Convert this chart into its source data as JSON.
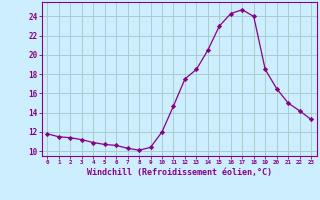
{
  "x": [
    0,
    1,
    2,
    3,
    4,
    5,
    6,
    7,
    8,
    9,
    10,
    11,
    12,
    13,
    14,
    15,
    16,
    17,
    18,
    19,
    20,
    21,
    22,
    23
  ],
  "y": [
    11.8,
    11.5,
    11.4,
    11.2,
    10.9,
    10.7,
    10.6,
    10.3,
    10.1,
    10.4,
    12.0,
    14.7,
    17.5,
    18.5,
    20.5,
    23.0,
    24.3,
    24.7,
    24.0,
    18.5,
    16.5,
    15.0,
    14.2,
    13.3
  ],
  "line_color": "#880088",
  "marker": "D",
  "marker_size": 2.2,
  "bg_color": "#cceeff",
  "grid_color": "#aacccc",
  "xlabel": "Windchill (Refroidissement éolien,°C)",
  "xlabel_color": "#880088",
  "tick_color": "#880088",
  "ylim": [
    9.5,
    25.5
  ],
  "yticks": [
    10,
    12,
    14,
    16,
    18,
    20,
    22,
    24
  ],
  "xlim": [
    -0.5,
    23.5
  ],
  "spine_color": "#880088"
}
